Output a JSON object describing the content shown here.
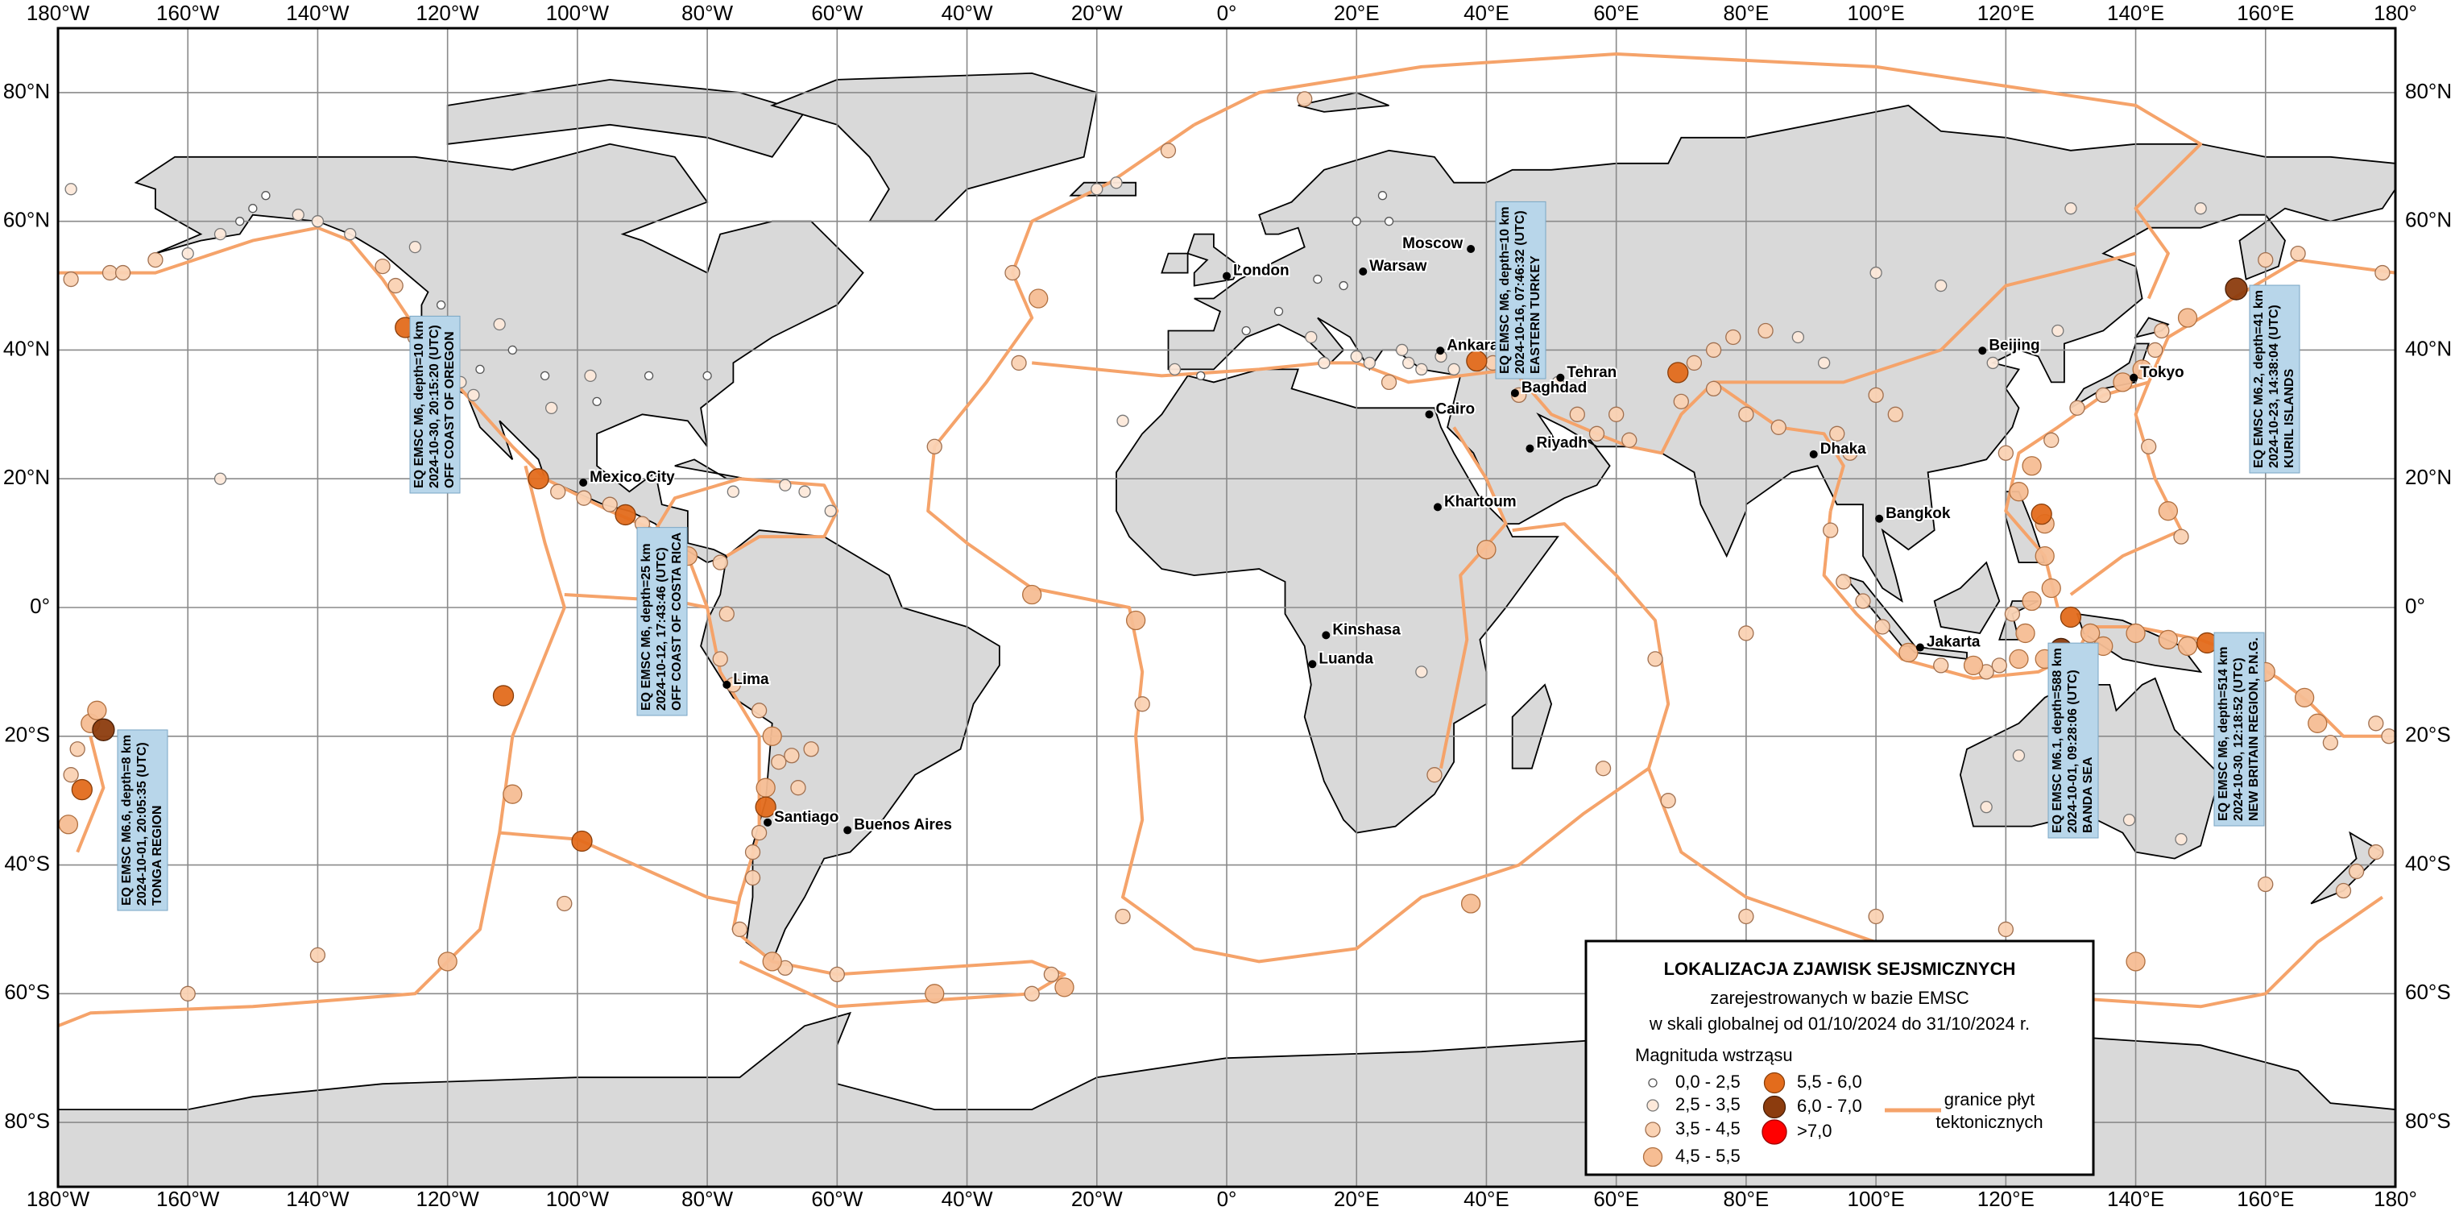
{
  "map": {
    "xlim": [
      -180,
      180
    ],
    "ylim": [
      -90,
      90
    ],
    "lon_ticks": [
      {
        "value": -180,
        "label": "180°W"
      },
      {
        "value": -160,
        "label": "160°W"
      },
      {
        "value": -140,
        "label": "140°W"
      },
      {
        "value": -120,
        "label": "120°W"
      },
      {
        "value": -100,
        "label": "100°W"
      },
      {
        "value": -80,
        "label": "80°W"
      },
      {
        "value": -60,
        "label": "60°W"
      },
      {
        "value": -40,
        "label": "40°W"
      },
      {
        "value": -20,
        "label": "20°W"
      },
      {
        "value": 0,
        "label": "0°"
      },
      {
        "value": 20,
        "label": "20°E"
      },
      {
        "value": 40,
        "label": "40°E"
      },
      {
        "value": 60,
        "label": "60°E"
      },
      {
        "value": 80,
        "label": "80°E"
      },
      {
        "value": 100,
        "label": "100°E"
      },
      {
        "value": 120,
        "label": "120°E"
      },
      {
        "value": 140,
        "label": "140°E"
      },
      {
        "value": 160,
        "label": "160°E"
      },
      {
        "value": 180,
        "label": "180°"
      }
    ],
    "lat_ticks": [
      {
        "value": 80,
        "label": "80°N"
      },
      {
        "value": 60,
        "label": "60°N"
      },
      {
        "value": 40,
        "label": "40°N"
      },
      {
        "value": 20,
        "label": "20°N"
      },
      {
        "value": 0,
        "label": "0°"
      },
      {
        "value": -20,
        "label": "20°S"
      },
      {
        "value": -40,
        "label": "40°S"
      },
      {
        "value": -60,
        "label": "60°S"
      },
      {
        "value": -80,
        "label": "80°S"
      }
    ],
    "cities": [
      {
        "name": "London",
        "lon": 0,
        "lat": 51.5
      },
      {
        "name": "Warsaw",
        "lon": 21,
        "lat": 52.2
      },
      {
        "name": "Moscow",
        "lon": 37.6,
        "lat": 55.7
      },
      {
        "name": "Ankara",
        "lon": 32.9,
        "lat": 39.9
      },
      {
        "name": "Tehran",
        "lon": 51.4,
        "lat": 35.7
      },
      {
        "name": "Baghdad",
        "lon": 44.4,
        "lat": 33.3
      },
      {
        "name": "Riyadh",
        "lon": 46.7,
        "lat": 24.7
      },
      {
        "name": "Cairo",
        "lon": 31.2,
        "lat": 30
      },
      {
        "name": "Khartoum",
        "lon": 32.5,
        "lat": 15.6
      },
      {
        "name": "Kinshasa",
        "lon": 15.3,
        "lat": -4.3
      },
      {
        "name": "Luanda",
        "lon": 13.2,
        "lat": -8.8
      },
      {
        "name": "Beijing",
        "lon": 116.4,
        "lat": 39.9
      },
      {
        "name": "Tokyo",
        "lon": 139.7,
        "lat": 35.7
      },
      {
        "name": "Dhaka",
        "lon": 90.4,
        "lat": 23.8
      },
      {
        "name": "Bangkok",
        "lon": 100.5,
        "lat": 13.8
      },
      {
        "name": "Jakarta",
        "lon": 106.8,
        "lat": -6.2
      },
      {
        "name": "Mexico City",
        "lon": -99.1,
        "lat": 19.4
      },
      {
        "name": "Lima",
        "lon": -77,
        "lat": -12
      },
      {
        "name": "Santiago",
        "lon": -70.7,
        "lat": -33.4
      },
      {
        "name": "Buenos Aires",
        "lon": -58.4,
        "lat": -34.6
      }
    ],
    "earthquakes": [
      [
        -178,
        51,
        4.2
      ],
      [
        -172,
        52,
        3.8
      ],
      [
        -165,
        54,
        4.5
      ],
      [
        -160,
        55,
        3.2
      ],
      [
        -155,
        58,
        2.8
      ],
      [
        -152,
        60,
        2.2
      ],
      [
        -150,
        62,
        2.0
      ],
      [
        -148,
        64,
        2.4
      ],
      [
        -143,
        61,
        3.0
      ],
      [
        -140,
        60,
        2.6
      ],
      [
        -135,
        58,
        3.4
      ],
      [
        -128,
        50,
        4.0
      ],
      [
        -126.5,
        43.5,
        6.0
      ],
      [
        -122,
        38,
        3.0
      ],
      [
        -118,
        35,
        2.6
      ],
      [
        -116,
        33,
        3.2
      ],
      [
        -115,
        37,
        2.2
      ],
      [
        -112,
        44,
        2.8
      ],
      [
        -110,
        40,
        2.4
      ],
      [
        -105,
        36,
        2.0
      ],
      [
        -98,
        36,
        2.6
      ],
      [
        -97,
        32,
        2.2
      ],
      [
        -104,
        31,
        3.0
      ],
      [
        -80,
        36,
        2.0
      ],
      [
        -89,
        36,
        2.4
      ],
      [
        -121,
        47,
        2.4
      ],
      [
        -130,
        53,
        3.6
      ],
      [
        -106,
        20,
        5.6
      ],
      [
        -103,
        18,
        4.2
      ],
      [
        -99,
        17,
        3.8
      ],
      [
        -95,
        16,
        4.0
      ],
      [
        -92.6,
        14.4,
        5.7
      ],
      [
        -90,
        13,
        3.9
      ],
      [
        -85.8,
        9.6,
        6.0
      ],
      [
        -83,
        8,
        4.6
      ],
      [
        -78,
        7,
        4.0
      ],
      [
        -65,
        18,
        3.2
      ],
      [
        -68,
        19,
        3.0
      ],
      [
        -61,
        15,
        3.4
      ],
      [
        -76,
        18,
        3.0
      ],
      [
        -77,
        -1,
        4.2
      ],
      [
        -78,
        -8,
        4.0
      ],
      [
        -76,
        -12,
        4.5
      ],
      [
        -72,
        -16,
        4.4
      ],
      [
        -70,
        -20,
        4.6
      ],
      [
        -69,
        -24,
        4.3
      ],
      [
        -71,
        -28,
        4.8
      ],
      [
        -71,
        -31,
        5.8
      ],
      [
        -72,
        -35,
        4.4
      ],
      [
        -73,
        -38,
        4.0
      ],
      [
        -73,
        -42,
        3.8
      ],
      [
        -67,
        -23,
        4.2
      ],
      [
        -66,
        -28,
        3.9
      ],
      [
        -64,
        -22,
        3.6
      ],
      [
        -75,
        -50,
        3.6
      ],
      [
        -68,
        -56,
        4.2
      ],
      [
        -27,
        -57,
        4.5
      ],
      [
        -25,
        -59,
        4.8
      ],
      [
        -30,
        -60,
        4.4
      ],
      [
        -99.3,
        -36.3,
        5.8
      ],
      [
        -111.4,
        -13.7,
        5.6
      ],
      [
        -29,
        48,
        4.6
      ],
      [
        -33,
        52,
        4.4
      ],
      [
        -45,
        25,
        4.4
      ],
      [
        -30,
        2,
        4.6
      ],
      [
        -14,
        -2,
        4.6
      ],
      [
        -13,
        -15,
        4.4
      ],
      [
        -16,
        -48,
        4.4
      ],
      [
        -32,
        38,
        4.0
      ],
      [
        -20,
        65,
        3.4
      ],
      [
        -17,
        66,
        2.6
      ],
      [
        -9,
        71,
        4.4
      ],
      [
        12,
        79,
        4.4
      ],
      [
        -8,
        37,
        3.0
      ],
      [
        -4,
        36,
        2.4
      ],
      [
        3,
        43,
        2.2
      ],
      [
        8,
        46,
        2.0
      ],
      [
        13,
        42,
        2.6
      ],
      [
        15,
        38,
        3.0
      ],
      [
        20,
        39,
        2.8
      ],
      [
        22,
        38,
        3.2
      ],
      [
        25,
        35,
        3.6
      ],
      [
        28,
        38,
        3.4
      ],
      [
        27,
        40,
        2.6
      ],
      [
        30,
        37,
        3.0
      ],
      [
        33,
        39,
        3.2
      ],
      [
        35,
        37,
        3.4
      ],
      [
        38.5,
        38.3,
        6.0
      ],
      [
        41,
        38,
        3.8
      ],
      [
        44,
        39,
        3.6
      ],
      [
        47,
        37,
        4.0
      ],
      [
        51,
        35,
        3.4
      ],
      [
        54,
        30,
        4.2
      ],
      [
        57,
        27,
        4.4
      ],
      [
        60,
        30,
        3.8
      ],
      [
        45,
        33,
        3.6
      ],
      [
        20,
        60,
        2.0
      ],
      [
        24,
        64,
        2.2
      ],
      [
        25,
        60,
        2.0
      ],
      [
        18,
        50,
        2.0
      ],
      [
        14,
        51,
        2.0
      ],
      [
        69.5,
        36.5,
        5.8
      ],
      [
        72,
        38,
        4.2
      ],
      [
        75,
        40,
        4.0
      ],
      [
        78,
        42,
        3.8
      ],
      [
        83,
        43,
        3.6
      ],
      [
        88,
        42,
        3.2
      ],
      [
        92,
        38,
        3.4
      ],
      [
        100,
        33,
        3.6
      ],
      [
        103,
        30,
        3.8
      ],
      [
        96,
        24,
        3.8
      ],
      [
        94,
        27,
        4.0
      ],
      [
        85,
        28,
        4.0
      ],
      [
        80,
        30,
        3.6
      ],
      [
        75,
        34,
        3.8
      ],
      [
        70,
        32,
        4.0
      ],
      [
        62,
        26,
        4.0
      ],
      [
        118,
        38,
        3.0
      ],
      [
        120,
        24,
        4.2
      ],
      [
        128,
        43,
        3.4
      ],
      [
        110,
        50,
        3.0
      ],
      [
        100,
        52,
        3.2
      ],
      [
        130,
        62,
        2.8
      ],
      [
        150,
        62,
        2.8
      ],
      [
        131,
        31,
        4.4
      ],
      [
        135,
        33,
        4.2
      ],
      [
        138,
        35,
        4.6
      ],
      [
        141,
        37,
        4.6
      ],
      [
        143,
        40,
        4.4
      ],
      [
        144,
        43,
        4.4
      ],
      [
        148,
        45,
        4.6
      ],
      [
        155.5,
        49.5,
        6.2
      ],
      [
        160,
        54,
        4.4
      ],
      [
        165,
        55,
        4.0
      ],
      [
        127,
        26,
        4.4
      ],
      [
        124,
        22,
        4.8
      ],
      [
        122,
        18,
        4.6
      ],
      [
        126,
        13,
        5.0
      ],
      [
        125.5,
        14.5,
        5.8
      ],
      [
        126,
        8,
        5.0
      ],
      [
        127,
        3,
        4.8
      ],
      [
        124,
        1,
        4.6
      ],
      [
        121,
        -1,
        4.4
      ],
      [
        123,
        -4,
        4.6
      ],
      [
        128.5,
        -6.5,
        6.1
      ],
      [
        130,
        -1.5,
        5.8
      ],
      [
        133,
        -4,
        4.8
      ],
      [
        135,
        -6,
        4.6
      ],
      [
        140,
        -4,
        4.6
      ],
      [
        145,
        -5,
        4.8
      ],
      [
        151,
        -5.5,
        6.0
      ],
      [
        148,
        -6,
        4.8
      ],
      [
        155,
        -7,
        4.6
      ],
      [
        160,
        -10,
        4.8
      ],
      [
        166,
        -14,
        4.8
      ],
      [
        168,
        -18,
        4.6
      ],
      [
        170,
        -21,
        4.4
      ],
      [
        177,
        -18,
        4.4
      ],
      [
        145,
        15,
        4.6
      ],
      [
        142,
        25,
        4.2
      ],
      [
        147,
        11,
        4.4
      ],
      [
        95,
        4,
        4.4
      ],
      [
        98,
        1,
        4.2
      ],
      [
        101,
        -3,
        4.4
      ],
      [
        105,
        -7,
        4.6
      ],
      [
        110,
        -9,
        4.4
      ],
      [
        115,
        -9,
        4.6
      ],
      [
        119,
        -9,
        4.4
      ],
      [
        122,
        -8,
        4.6
      ],
      [
        126,
        -8,
        4.8
      ],
      [
        117,
        -10,
        4.2
      ],
      [
        93,
        12,
        4.0
      ],
      [
        122,
        -23,
        3.4
      ],
      [
        129,
        -19,
        3.2
      ],
      [
        117,
        -31,
        3.0
      ],
      [
        139,
        -33,
        2.8
      ],
      [
        147,
        -36,
        3.0
      ],
      [
        132,
        -28,
        3.0
      ],
      [
        -175,
        -18,
        4.6
      ],
      [
        -173,
        -19,
        6.6
      ],
      [
        -177,
        -22,
        4.4
      ],
      [
        -178,
        -26,
        4.2
      ],
      [
        -176.3,
        -28.3,
        5.7
      ],
      [
        -178.4,
        -33.7,
        4.8
      ],
      [
        177,
        -38,
        4.4
      ],
      [
        174,
        -41,
        4.2
      ],
      [
        172,
        -44,
        4.0
      ],
      [
        179,
        -20,
        4.4
      ],
      [
        -16,
        29,
        3.0
      ],
      [
        32,
        -26,
        4.2
      ],
      [
        30,
        -10,
        3.4
      ],
      [
        40,
        9,
        5.0
      ],
      [
        37.6,
        -46,
        4.6
      ],
      [
        68,
        -30,
        4.4
      ],
      [
        80,
        -48,
        4.4
      ],
      [
        100,
        -48,
        4.4
      ],
      [
        120,
        -50,
        4.4
      ],
      [
        140,
        -55,
        4.6
      ],
      [
        -120,
        -55,
        4.8
      ],
      [
        -160,
        -60,
        4.4
      ],
      [
        -155,
        20,
        3.4
      ],
      [
        -174,
        -16,
        4.6
      ],
      [
        -125,
        42,
        4.4
      ],
      [
        -70,
        -55,
        4.6
      ],
      [
        178,
        52,
        4.4
      ],
      [
        -170,
        52,
        4.0
      ],
      [
        -60,
        -57,
        4.4
      ],
      [
        -45,
        -60,
        4.6
      ],
      [
        -110,
        -29,
        4.6
      ],
      [
        -140,
        -54,
        4.4
      ],
      [
        -102,
        -46,
        4.4
      ],
      [
        80,
        -4,
        4.4
      ],
      [
        66,
        -8,
        4.4
      ],
      [
        58,
        -25,
        4.4
      ],
      [
        160,
        -43,
        4.2
      ],
      [
        -125,
        56,
        3.4
      ],
      [
        -178,
        65,
        3.4
      ]
    ],
    "annotations": [
      [
        "EQ EMSC M6, depth=10 km",
        "2024-10-30, 20:15:20 (UTC)",
        "OFF COAST OF OREGON"
      ],
      [
        "EQ EMSC M6, depth=25 km",
        "2024-10-12, 17:43:46 (UTC)",
        "OFF COAST OF COSTA RICA"
      ],
      [
        "EQ EMSC M6.6, depth=8 km",
        "2024-10-01, 20:05:35 (UTC)",
        "TONGA REGION"
      ],
      [
        "EQ EMSC M6, depth=10 km",
        "2024-10-16, 07:46:32 (UTC)",
        "EASTERN TURKEY"
      ],
      [
        "EQ EMSC M6.1, depth=588 km",
        "2024-10-01, 09:28:06 (UTC)",
        "BANDA SEA"
      ],
      [
        "EQ EMSC M6, depth=514 km",
        "2024-10-30, 12:18:52 (UTC)",
        "NEW BRITAIN REGION, P.N.G."
      ],
      [
        "EQ EMSC M6.2, depth=41 km",
        "2024-10-23, 14:38:04 (UTC)",
        "KURIL ISLANDS"
      ]
    ],
    "legend": {
      "title": "LOKALIZACJA ZJAWISK SEJSMICZNYCH",
      "subtitle_lines": [
        "zarejestrowanych w bazie EMSC",
        "w skali globalnej od 01/10/2024 do 31/10/2024 r."
      ],
      "magnitude_title": "Magnituda wstrząsu",
      "classes": [
        {
          "min": 0,
          "max": 2.5,
          "label": "0,0 - 2,5",
          "color": "#ffffff"
        },
        {
          "min": 2.5,
          "max": 3.5,
          "label": "2,5 - 3,5",
          "color": "#fde9da"
        },
        {
          "min": 3.5,
          "max": 4.5,
          "label": "3,5 - 4,5",
          "color": "#fad2b3"
        },
        {
          "min": 4.5,
          "max": 5.5,
          "label": "4,5 - 5,5",
          "color": "#f6bd93"
        },
        {
          "min": 5.5,
          "max": 6.0,
          "label": "5,5 - 6,0",
          "color": "#e36c1c"
        },
        {
          "min": 6.0,
          "max": 7.0,
          "label": "6,0 - 7,0",
          "color": "#8c3c0e"
        },
        {
          "min": 7.0,
          "label": ">7,0",
          "color": "#ff0000"
        }
      ],
      "plate_label_lines": [
        "granice płyt",
        "tektonicznych"
      ],
      "plate_color": "#f5a36a"
    }
  }
}
